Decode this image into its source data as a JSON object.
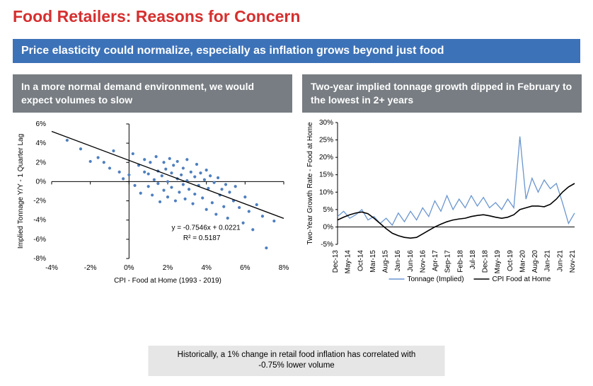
{
  "title": "Food Retailers: Reasons for Concern",
  "blue_band": "Price elasticity could normalize, especially as inflation grows beyond just food",
  "scatter_panel": {
    "header": "In a more normal demand environment, we would expect volumes to slow",
    "type": "scatter",
    "xlabel": "CPI - Food at Home (1993 - 2019)",
    "ylabel": "Implied Tonnage Y/Y - 1 Quarter Lag",
    "xlim": [
      -4,
      8
    ],
    "ylim": [
      -8,
      6
    ],
    "xtick_step": 2,
    "ytick_step": 2,
    "tick_format": "pct",
    "point_color": "#4f7fbf",
    "point_size": 2.1,
    "axis_color": "#000000",
    "trend": {
      "slope": -0.7546,
      "intercept": 0.0221,
      "r2": 0.5187,
      "color": "#000000",
      "width": 1.3
    },
    "equation_text1": "y = -0.7546x + 0.0221",
    "equation_text2": "R² = 0.5187",
    "points": [
      [
        -3.2,
        4.3
      ],
      [
        -2.5,
        3.4
      ],
      [
        -2.0,
        2.1
      ],
      [
        -1.6,
        2.5
      ],
      [
        -1.3,
        2.0
      ],
      [
        -1.0,
        1.4
      ],
      [
        -0.8,
        3.2
      ],
      [
        -0.5,
        1.0
      ],
      [
        -0.3,
        0.3
      ],
      [
        0.0,
        0.7
      ],
      [
        0.2,
        2.9
      ],
      [
        0.3,
        -0.4
      ],
      [
        0.5,
        1.7
      ],
      [
        0.6,
        -1.2
      ],
      [
        0.8,
        1.0
      ],
      [
        0.8,
        2.3
      ],
      [
        1.0,
        -0.5
      ],
      [
        1.0,
        0.8
      ],
      [
        1.1,
        2.0
      ],
      [
        1.2,
        -1.4
      ],
      [
        1.3,
        0.2
      ],
      [
        1.4,
        2.6
      ],
      [
        1.5,
        1.1
      ],
      [
        1.5,
        -0.2
      ],
      [
        1.6,
        -2.1
      ],
      [
        1.7,
        0.6
      ],
      [
        1.8,
        2.0
      ],
      [
        1.8,
        -0.9
      ],
      [
        1.9,
        1.3
      ],
      [
        2.0,
        0.0
      ],
      [
        2.0,
        -1.6
      ],
      [
        2.1,
        2.4
      ],
      [
        2.2,
        0.9
      ],
      [
        2.2,
        -0.6
      ],
      [
        2.3,
        1.7
      ],
      [
        2.4,
        -2.0
      ],
      [
        2.5,
        0.3
      ],
      [
        2.5,
        2.1
      ],
      [
        2.6,
        -1.1
      ],
      [
        2.7,
        0.7
      ],
      [
        2.8,
        -0.3
      ],
      [
        2.8,
        1.4
      ],
      [
        2.9,
        -1.8
      ],
      [
        3.0,
        0.1
      ],
      [
        3.0,
        2.3
      ],
      [
        3.1,
        -0.8
      ],
      [
        3.2,
        1.0
      ],
      [
        3.3,
        -2.3
      ],
      [
        3.4,
        0.5
      ],
      [
        3.4,
        -1.3
      ],
      [
        3.5,
        1.8
      ],
      [
        3.6,
        -0.4
      ],
      [
        3.7,
        0.9
      ],
      [
        3.8,
        -1.7
      ],
      [
        3.9,
        0.2
      ],
      [
        4.0,
        -2.9
      ],
      [
        4.0,
        1.2
      ],
      [
        4.1,
        -0.7
      ],
      [
        4.2,
        0.6
      ],
      [
        4.3,
        -2.2
      ],
      [
        4.4,
        -0.1
      ],
      [
        4.5,
        -3.4
      ],
      [
        4.6,
        0.4
      ],
      [
        4.7,
        -1.4
      ],
      [
        4.8,
        -0.8
      ],
      [
        4.9,
        -2.6
      ],
      [
        5.0,
        -0.3
      ],
      [
        5.1,
        -3.8
      ],
      [
        5.2,
        -1.1
      ],
      [
        5.4,
        -2.0
      ],
      [
        5.5,
        -0.5
      ],
      [
        5.7,
        -2.7
      ],
      [
        5.9,
        -4.3
      ],
      [
        6.0,
        -1.6
      ],
      [
        6.2,
        -3.1
      ],
      [
        6.4,
        -5.0
      ],
      [
        6.6,
        -2.4
      ],
      [
        6.9,
        -3.6
      ],
      [
        7.1,
        -6.9
      ],
      [
        7.5,
        -4.1
      ]
    ]
  },
  "line_panel": {
    "header": "Two-year implied tonnage growth dipped in February to the lowest in 2+ years",
    "type": "line",
    "ylabel": "Two-Year Growth Rate - Food at Home",
    "ylim": [
      -5,
      30
    ],
    "ytick_step": 5,
    "tick_format": "pct",
    "axis_color": "#000000",
    "x_labels": [
      "Dec-13",
      "May-14",
      "Oct-14",
      "Mar-15",
      "Aug-15",
      "Jan-16",
      "Jun-16",
      "Nov-16",
      "Apr-17",
      "Sep-17",
      "Feb-18",
      "Jul-18",
      "Dec-18",
      "May-19",
      "Oct-19",
      "Mar-20",
      "Aug-20",
      "Jan-21",
      "Jun-21",
      "Nov-21"
    ],
    "series": [
      {
        "name": "Tonnage (Implied)",
        "color": "#6a95cf",
        "width": 1.3,
        "values": [
          3.0,
          4.5,
          2.5,
          3.5,
          5.0,
          2.0,
          3.0,
          1.0,
          2.5,
          0.5,
          4.0,
          1.5,
          4.5,
          2.0,
          5.5,
          3.0,
          7.5,
          4.5,
          9.0,
          5.0,
          8.0,
          5.5,
          9.0,
          6.0,
          8.5,
          5.5,
          7.0,
          5.0,
          8.0,
          5.5,
          26.0,
          8.0,
          14.0,
          10.0,
          13.5,
          11.0,
          12.5,
          7.0,
          1.0,
          4.0
        ]
      },
      {
        "name": "CPI Food at Home",
        "color": "#000000",
        "width": 1.6,
        "values": [
          2.0,
          2.8,
          3.5,
          4.0,
          4.3,
          3.8,
          2.5,
          1.0,
          -0.5,
          -1.8,
          -2.5,
          -3.0,
          -3.2,
          -3.0,
          -2.0,
          -1.0,
          0.0,
          0.8,
          1.5,
          2.0,
          2.3,
          2.5,
          3.0,
          3.3,
          3.5,
          3.2,
          2.8,
          2.5,
          2.8,
          3.5,
          5.0,
          5.5,
          6.0,
          6.0,
          5.8,
          6.5,
          8.0,
          10.0,
          11.5,
          12.5
        ]
      }
    ],
    "legend": [
      {
        "label": "Tonnage (Implied)",
        "color": "#6a95cf"
      },
      {
        "label": "CPI Food at Home",
        "color": "#000000"
      }
    ]
  },
  "footnote": "Historically, a 1% change in retail food inflation has correlated with -0.75% lower volume",
  "layout": {
    "scatter_w": 395,
    "scatter_h": 240,
    "line_w": 395,
    "line_h": 240,
    "label_fontsize": 10
  }
}
